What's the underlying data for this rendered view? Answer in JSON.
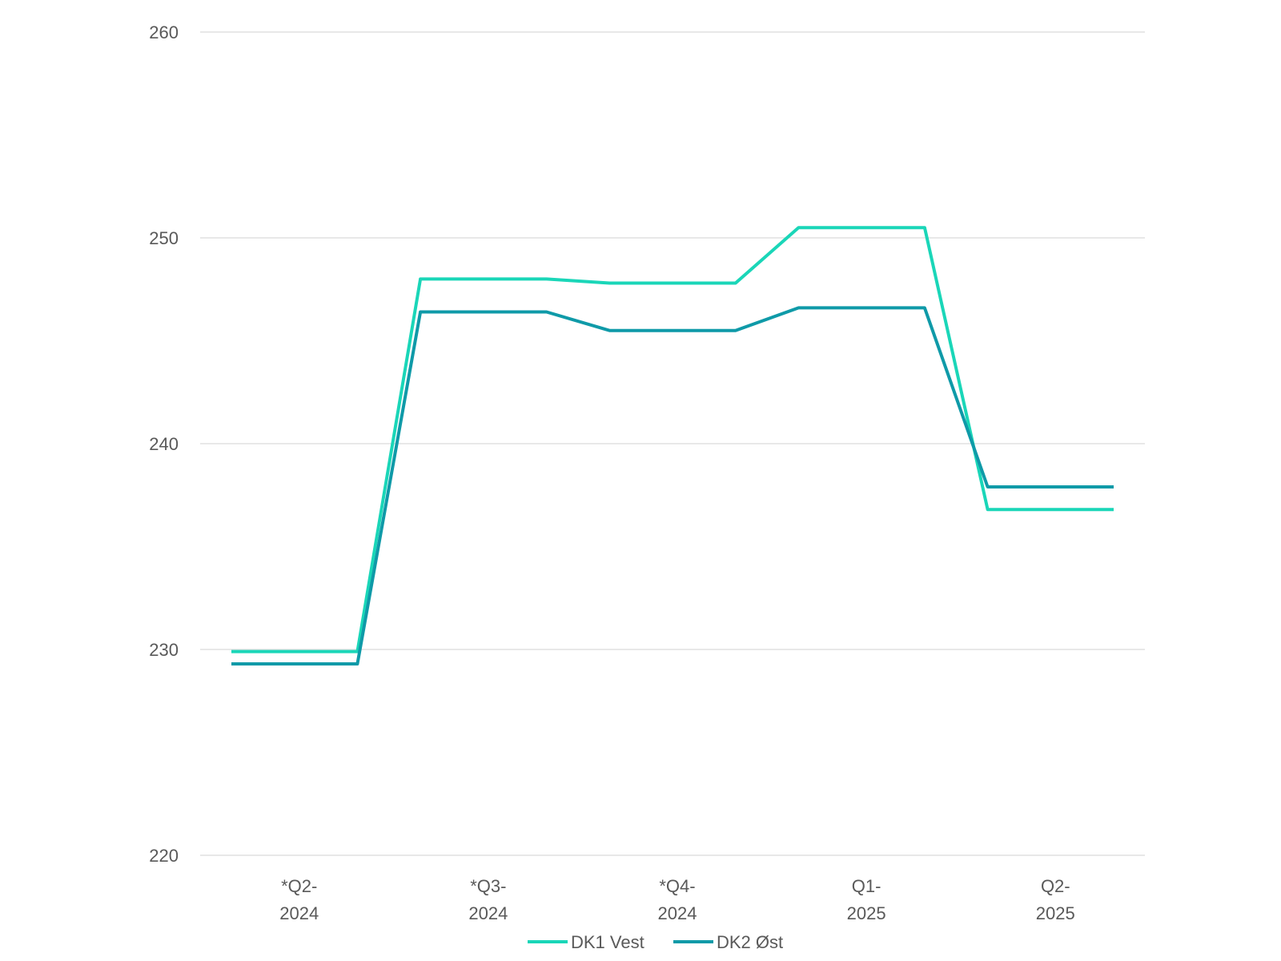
{
  "chart_data": {
    "type": "line",
    "title": "",
    "xlabel": "",
    "ylabel": "",
    "ylim": [
      220,
      260
    ],
    "yticks": [
      220,
      230,
      240,
      250,
      260
    ],
    "grid": true,
    "legend_position": "bottom",
    "x": [
      0,
      1,
      2,
      3,
      4,
      5,
      6,
      7,
      8,
      9,
      10,
      11,
      12,
      13,
      14
    ],
    "category_labels": [
      {
        "line1": "*Q2-",
        "line2": "2024"
      },
      {
        "line1": "*Q3-",
        "line2": "2024"
      },
      {
        "line1": "*Q4-",
        "line2": "2024"
      },
      {
        "line1": "Q1-",
        "line2": "2025"
      },
      {
        "line1": "Q2-",
        "line2": "2025"
      }
    ],
    "series": [
      {
        "name": "DK1 Vest",
        "color": "#1ad6b8",
        "values": [
          229.9,
          229.9,
          229.9,
          248.0,
          248.0,
          248.0,
          247.8,
          247.8,
          247.8,
          250.5,
          250.5,
          250.5,
          236.8,
          236.8,
          236.8
        ]
      },
      {
        "name": "DK2 Øst",
        "color": "#0f9aa8",
        "values": [
          229.3,
          229.3,
          229.3,
          246.4,
          246.4,
          246.4,
          245.5,
          245.5,
          245.5,
          246.6,
          246.6,
          246.6,
          237.9,
          237.9,
          237.9
        ]
      }
    ]
  }
}
